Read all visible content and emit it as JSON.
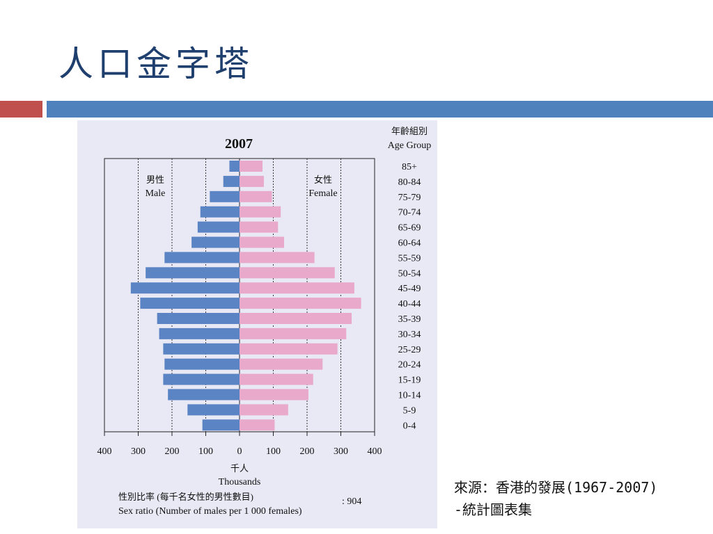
{
  "slide": {
    "title": "人口金字塔",
    "source_line1": "來源：香港的發展(1967-2007)",
    "source_line2": "-統計圖表集"
  },
  "colors": {
    "male": "#5b84c4",
    "female": "#e9a9ca",
    "title": "#1f3f6e",
    "accent_red": "#c0504d",
    "accent_blue": "#4f81bd"
  },
  "chart_data": {
    "type": "bar",
    "orientation": "horizontal-population-pyramid",
    "title": "2007",
    "age_group_label_zh": "年齡組別",
    "age_group_label_en": "Age Group",
    "xlabel_zh": "千人",
    "xlabel_en": "Thousands",
    "male_label_zh": "男性",
    "male_label_en": "Male",
    "female_label_zh": "女性",
    "female_label_en": "Female",
    "xlim": [
      -400,
      400
    ],
    "x_ticks": [
      "400",
      "300",
      "200",
      "100",
      "0",
      "100",
      "200",
      "300",
      "400"
    ],
    "grid": "dotted vertical lines at 100, 200, 300",
    "categories": [
      "85+",
      "80-84",
      "75-79",
      "70-74",
      "65-69",
      "60-64",
      "55-59",
      "50-54",
      "45-49",
      "40-44",
      "35-39",
      "30-34",
      "25-29",
      "20-24",
      "15-19",
      "10-14",
      "5-9",
      "0-4"
    ],
    "series": [
      {
        "name": "Male",
        "values": [
          30,
          48,
          88,
          116,
          124,
          142,
          222,
          278,
          322,
          294,
          244,
          238,
          226,
          222,
          226,
          212,
          154,
          110
        ]
      },
      {
        "name": "Female",
        "values": [
          68,
          72,
          96,
          122,
          114,
          132,
          222,
          282,
          340,
          360,
          332,
          316,
          290,
          246,
          218,
          204,
          144,
          104
        ]
      }
    ],
    "sex_ratio_label_zh": "性別比率 (每千名女性的男性數目)",
    "sex_ratio_label_en": "Sex ratio (Number of males per 1 000 females)",
    "sex_ratio_value": ": 904"
  }
}
